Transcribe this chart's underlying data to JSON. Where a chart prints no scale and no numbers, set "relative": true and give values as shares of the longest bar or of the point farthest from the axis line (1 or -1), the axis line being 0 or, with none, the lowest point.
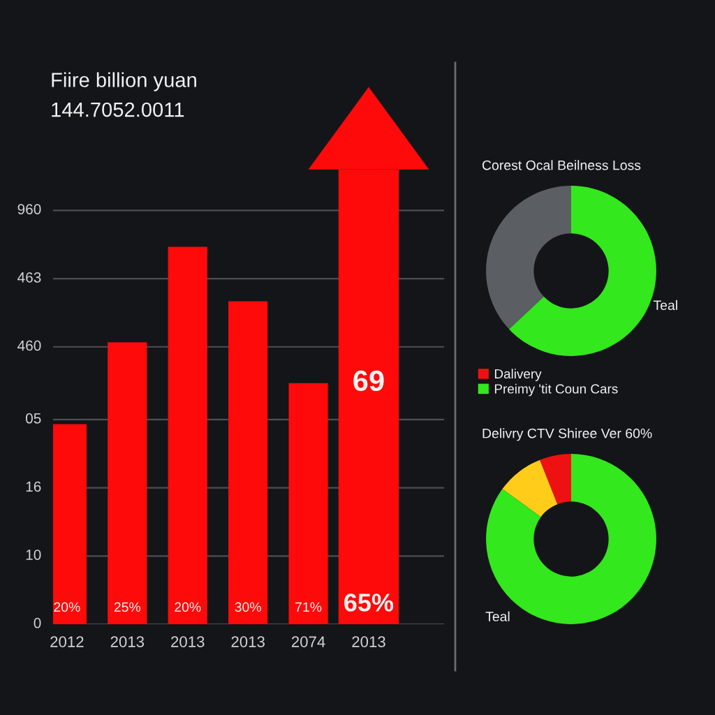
{
  "chart_data": [
    {
      "type": "bar",
      "title": "Fiire billion yuan",
      "subtitle": "144.7052.0011",
      "categories": [
        "2012",
        "2013",
        "2013",
        "2013",
        "2074",
        "2013"
      ],
      "values": [
        0.44,
        0.62,
        0.83,
        0.71,
        0.53,
        1
      ],
      "color": "#ff0a0a",
      "relative": true,
      "ref_lines": [
        {
          "axis": "y",
          "value": 0.91
        },
        {
          "axis": "y",
          "value": 0.76
        },
        {
          "axis": "y",
          "value": 0.61
        },
        {
          "axis": "y",
          "value": 0.45
        },
        {
          "axis": "y",
          "value": 0.3
        },
        {
          "axis": "y",
          "value": 0.15
        },
        {
          "axis": "y",
          "value": 0
        }
      ],
      "annotations": [
        "960",
        "463",
        "460",
        "05",
        "16",
        "10",
        "0",
        "20%",
        "25%",
        "20%",
        "30%",
        "71%",
        "65%",
        "69"
      ]
    },
    {
      "type": "donut",
      "title": "Corest Ocal Beilness Loss",
      "categories": [
        null,
        "Teal"
      ],
      "values": [
        37,
        63
      ],
      "colors": [
        "#5b5e63",
        "#33e81c"
      ]
    },
    {
      "type": "donut",
      "title": "Delivry CTV Shiree Ver 60%",
      "categories": [
        "Dalivery",
        null,
        "Preimy 'tit Coun Cars"
      ],
      "values": [
        6,
        9,
        85
      ],
      "colors": [
        "#ee1111",
        "#ffcc1a",
        "#33e81c"
      ],
      "legend": "top",
      "annotations": [
        "Teal"
      ]
    }
  ]
}
